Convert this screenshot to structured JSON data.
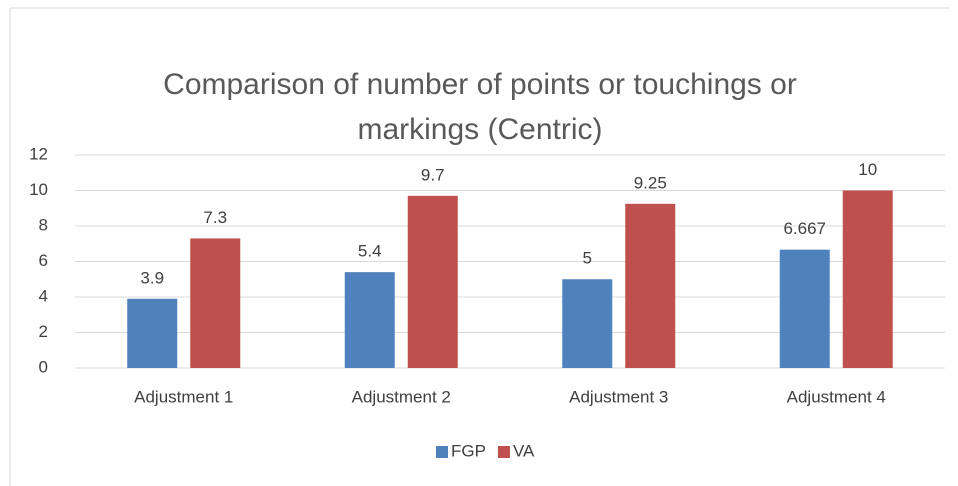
{
  "chart_data": {
    "type": "bar",
    "title": "Comparison of number of points or touchings or markings (Centric)",
    "categories": [
      "Adjustment 1",
      "Adjustment 2",
      "Adjustment 3",
      "Adjustment 4"
    ],
    "series": [
      {
        "name": "FGP",
        "color": "#4f81bd",
        "values": [
          3.9,
          5.4,
          5,
          6.667
        ]
      },
      {
        "name": "VA",
        "color": "#c0504d",
        "values": [
          7.3,
          9.7,
          9.25,
          10
        ]
      }
    ],
    "ylim": [
      0,
      12
    ],
    "yticks": [
      0,
      2,
      4,
      6,
      8,
      10,
      12
    ],
    "grid": true,
    "legend": "bottom"
  }
}
